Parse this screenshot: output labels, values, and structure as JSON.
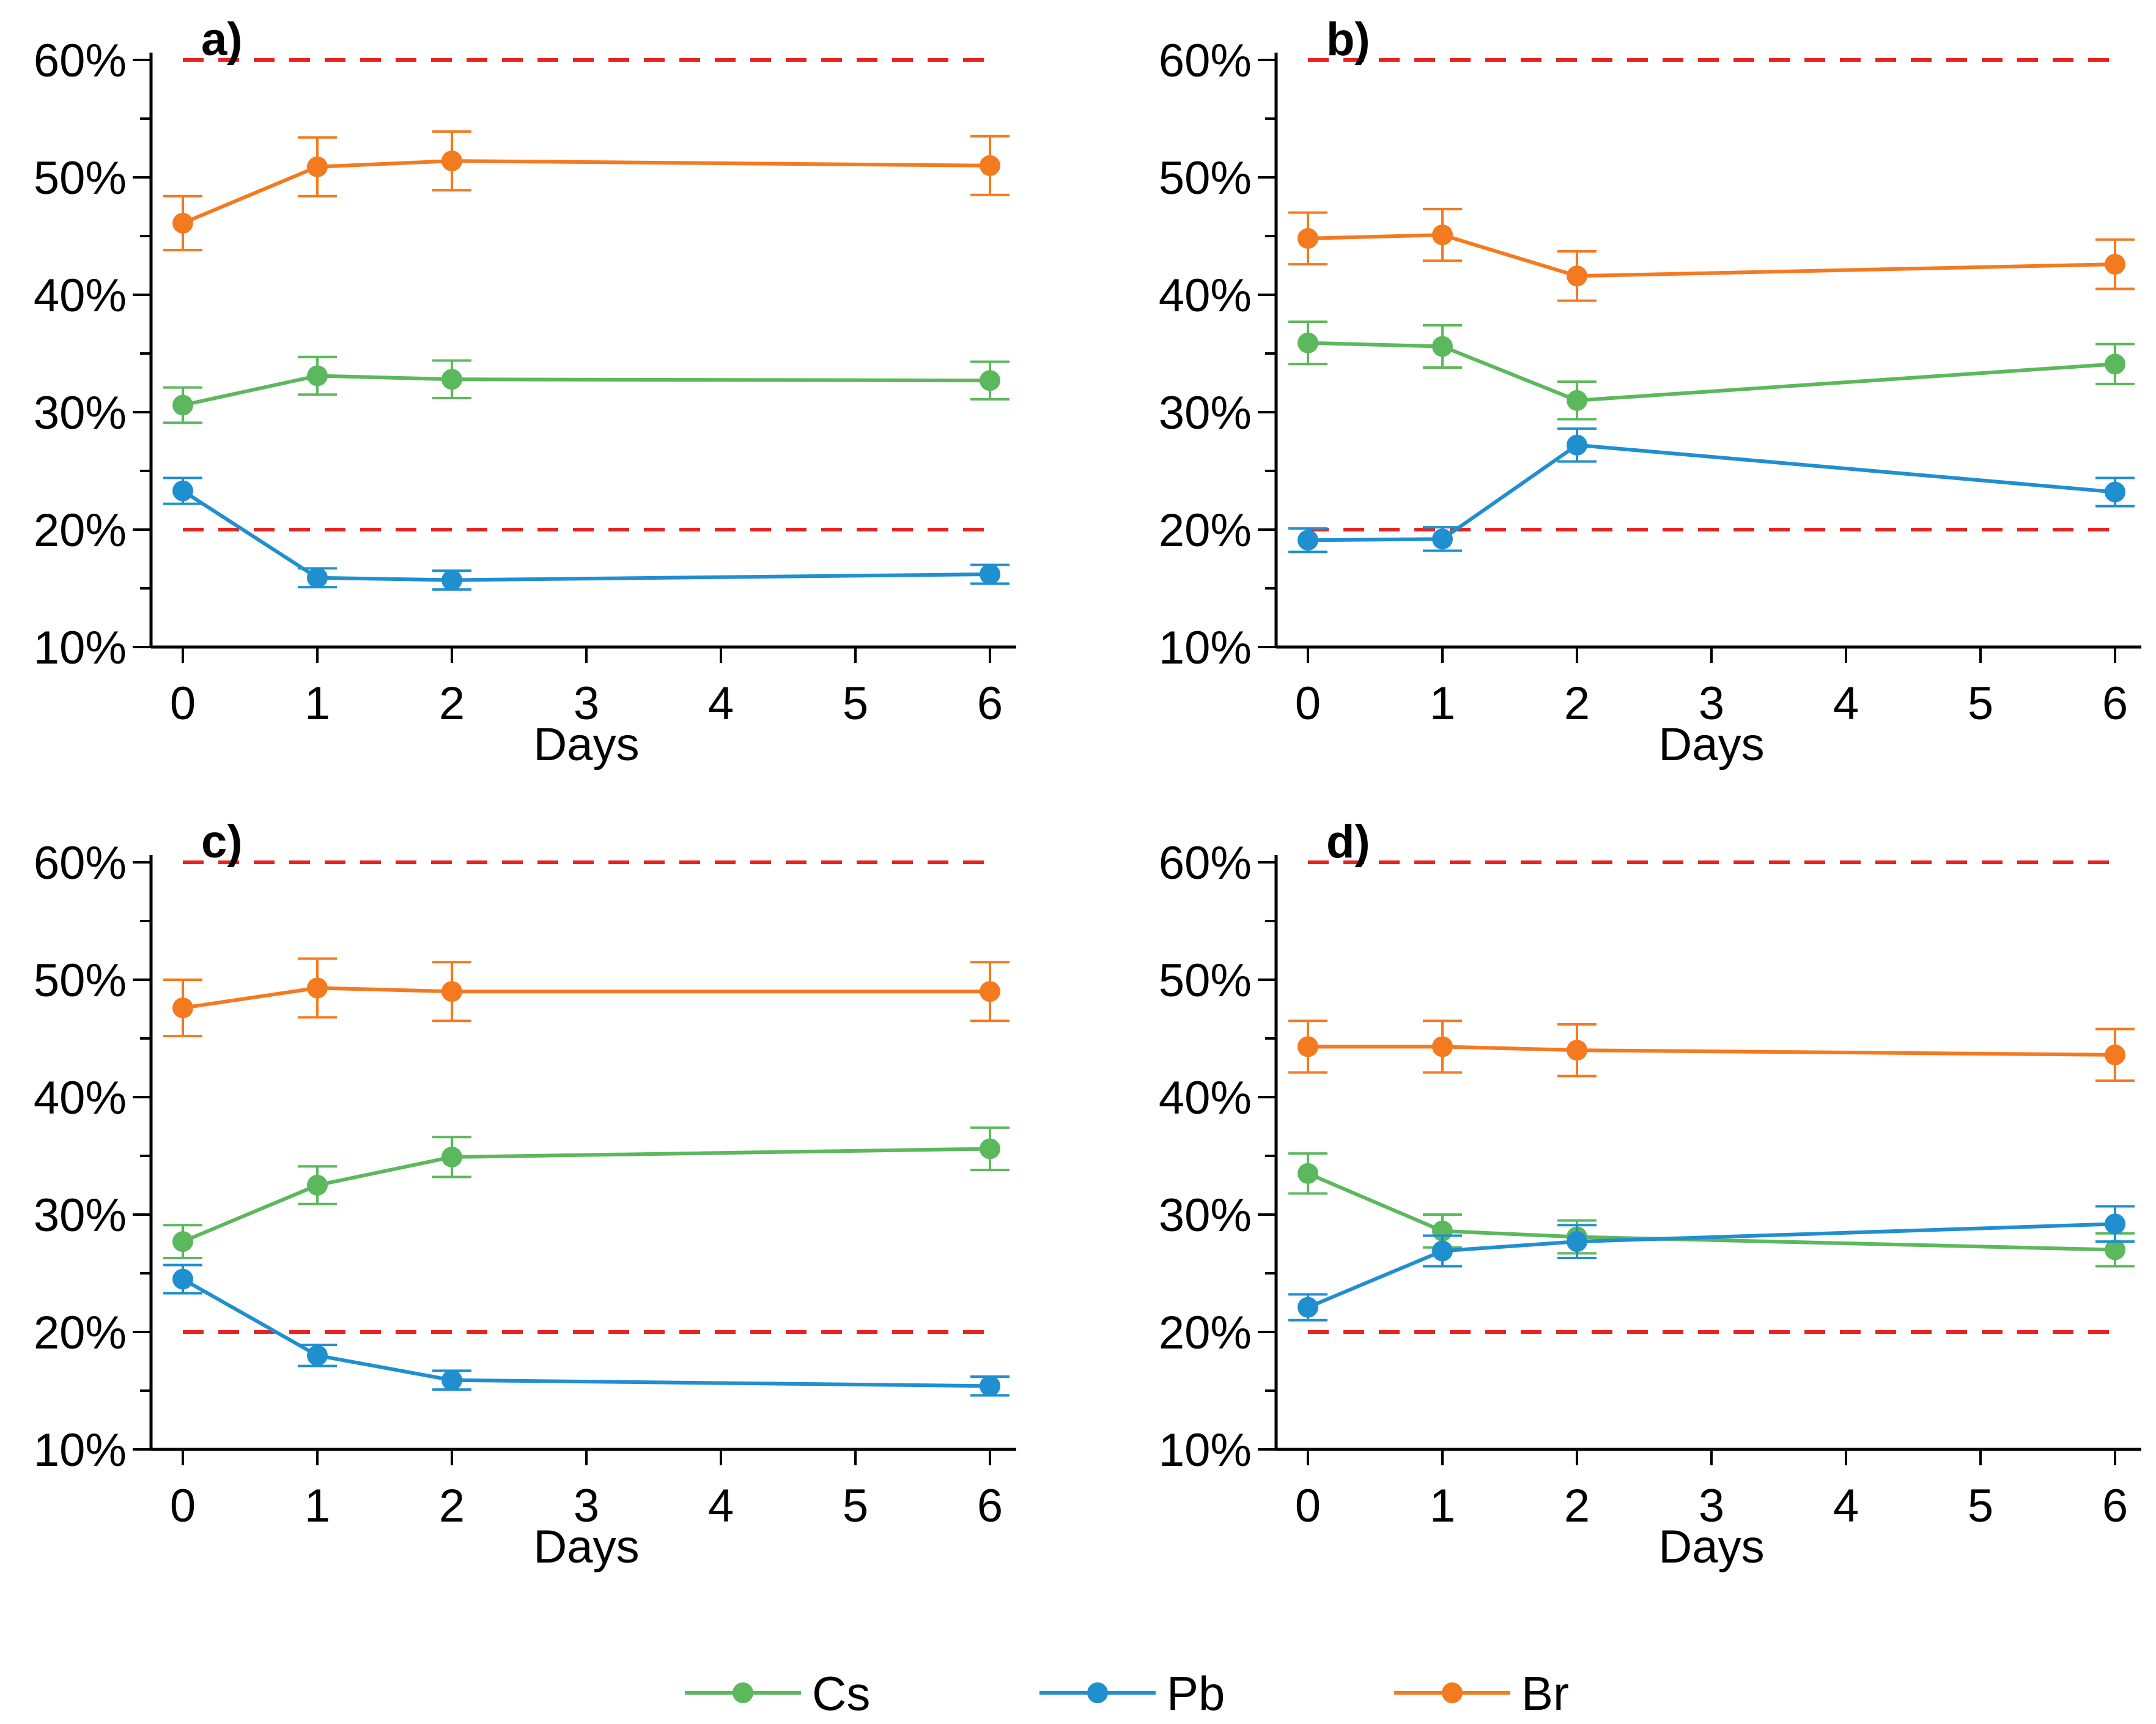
{
  "colors": {
    "Cs": "#5cb85c",
    "Pb": "#1f8fd0",
    "Br": "#f47a20",
    "reference": "#e8231f",
    "axis": "#000000"
  },
  "legend": [
    {
      "key": "Cs",
      "label": "Cs"
    },
    {
      "key": "Pb",
      "label": "Pb"
    },
    {
      "key": "Br",
      "label": "Br"
    }
  ],
  "chart_data": [
    {
      "type": "line",
      "panel_label": "a)",
      "xlabel": "Days",
      "ylabel": "",
      "x_ticks": [
        "0",
        "1",
        "2",
        "3",
        "4",
        "5",
        "6"
      ],
      "xlim": [
        0,
        6
      ],
      "y_ticks": [
        "10%",
        "20%",
        "30%",
        "40%",
        "50%",
        "60%"
      ],
      "ylim": [
        10,
        60
      ],
      "reference_lines": [
        60,
        20
      ],
      "x": [
        0,
        1,
        2,
        6
      ],
      "series": [
        {
          "name": "Cs",
          "values": [
            30.6,
            33.1,
            32.8,
            32.7
          ],
          "errors": [
            1.5,
            1.6,
            1.6,
            1.6
          ]
        },
        {
          "name": "Pb",
          "values": [
            23.3,
            15.9,
            15.7,
            16.2
          ],
          "errors": [
            1.1,
            0.8,
            0.8,
            0.8
          ]
        },
        {
          "name": "Br",
          "values": [
            46.1,
            50.9,
            51.4,
            51.0
          ],
          "errors": [
            2.3,
            2.5,
            2.5,
            2.5
          ]
        }
      ]
    },
    {
      "type": "line",
      "panel_label": "b)",
      "xlabel": "Days",
      "ylabel": "",
      "x_ticks": [
        "0",
        "1",
        "2",
        "3",
        "4",
        "5",
        "6"
      ],
      "xlim": [
        0,
        6
      ],
      "y_ticks": [
        "10%",
        "20%",
        "30%",
        "40%",
        "50%",
        "60%"
      ],
      "ylim": [
        10,
        60
      ],
      "reference_lines": [
        60,
        20
      ],
      "x": [
        0,
        1,
        2,
        6
      ],
      "series": [
        {
          "name": "Cs",
          "values": [
            35.9,
            35.6,
            31.0,
            34.1
          ],
          "errors": [
            1.8,
            1.8,
            1.6,
            1.7
          ]
        },
        {
          "name": "Pb",
          "values": [
            19.1,
            19.2,
            27.2,
            23.2
          ],
          "errors": [
            1.0,
            1.0,
            1.4,
            1.2
          ]
        },
        {
          "name": "Br",
          "values": [
            44.8,
            45.1,
            41.6,
            42.6
          ],
          "errors": [
            2.2,
            2.2,
            2.1,
            2.1
          ]
        }
      ]
    },
    {
      "type": "line",
      "panel_label": "c)",
      "xlabel": "Days",
      "ylabel": "",
      "x_ticks": [
        "0",
        "1",
        "2",
        "3",
        "4",
        "5",
        "6"
      ],
      "xlim": [
        0,
        6
      ],
      "y_ticks": [
        "10%",
        "20%",
        "30%",
        "40%",
        "50%",
        "60%"
      ],
      "ylim": [
        10,
        60
      ],
      "reference_lines": [
        60,
        20
      ],
      "x": [
        0,
        1,
        2,
        6
      ],
      "series": [
        {
          "name": "Cs",
          "values": [
            27.7,
            32.5,
            34.9,
            35.6
          ],
          "errors": [
            1.4,
            1.6,
            1.7,
            1.8
          ]
        },
        {
          "name": "Pb",
          "values": [
            24.5,
            18.0,
            15.9,
            15.4
          ],
          "errors": [
            1.2,
            0.9,
            0.8,
            0.8
          ]
        },
        {
          "name": "Br",
          "values": [
            47.6,
            49.3,
            49.0,
            49.0
          ],
          "errors": [
            2.4,
            2.5,
            2.5,
            2.5
          ]
        }
      ]
    },
    {
      "type": "line",
      "panel_label": "d)",
      "xlabel": "Days",
      "ylabel": "",
      "x_ticks": [
        "0",
        "1",
        "2",
        "3",
        "4",
        "5",
        "6"
      ],
      "xlim": [
        0,
        6
      ],
      "y_ticks": [
        "10%",
        "20%",
        "30%",
        "40%",
        "50%",
        "60%"
      ],
      "ylim": [
        10,
        60
      ],
      "reference_lines": [
        60,
        20
      ],
      "x": [
        0,
        1,
        2,
        6
      ],
      "series": [
        {
          "name": "Cs",
          "values": [
            33.5,
            28.6,
            28.1,
            27.0
          ],
          "errors": [
            1.7,
            1.4,
            1.4,
            1.4
          ]
        },
        {
          "name": "Pb",
          "values": [
            22.1,
            26.9,
            27.7,
            29.2
          ],
          "errors": [
            1.1,
            1.3,
            1.4,
            1.5
          ]
        },
        {
          "name": "Br",
          "values": [
            44.3,
            44.3,
            44.0,
            43.6
          ],
          "errors": [
            2.2,
            2.2,
            2.2,
            2.2
          ]
        }
      ]
    }
  ]
}
